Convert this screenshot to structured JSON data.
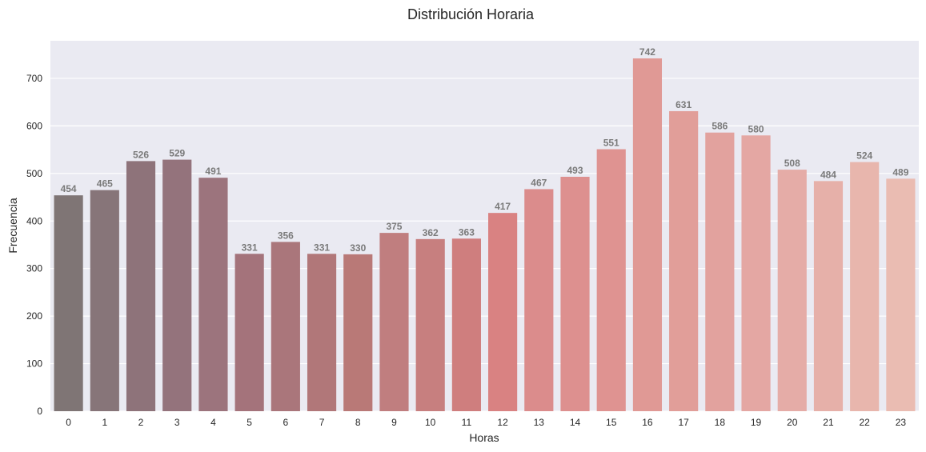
{
  "chart_data": {
    "type": "bar",
    "title": "Distribución Horaria",
    "xlabel": "Horas",
    "ylabel": "Frecuencia",
    "categories": [
      "0",
      "1",
      "2",
      "3",
      "4",
      "5",
      "6",
      "7",
      "8",
      "9",
      "10",
      "11",
      "12",
      "13",
      "14",
      "15",
      "16",
      "17",
      "18",
      "19",
      "20",
      "21",
      "22",
      "23"
    ],
    "values": [
      454,
      465,
      526,
      529,
      491,
      331,
      356,
      331,
      330,
      375,
      362,
      363,
      417,
      467,
      493,
      551,
      742,
      631,
      586,
      580,
      508,
      484,
      524,
      489
    ],
    "data_labels": [
      "454",
      "465",
      "526",
      "529",
      "491",
      "331",
      "356",
      "331",
      "330",
      "375",
      "362",
      "363",
      "417",
      "467",
      "493",
      "551",
      "742",
      "631",
      "586",
      "580",
      "508",
      "484",
      "524",
      "489"
    ],
    "ylim": [
      0,
      779
    ],
    "yticks": [
      0,
      100,
      200,
      300,
      400,
      500,
      600,
      700
    ],
    "grid": true,
    "background": "#eaeaf2",
    "bar_colors": [
      "#7f7575",
      "#877579",
      "#8e737a",
      "#94737c",
      "#9c747d",
      "#a4737b",
      "#aa767b",
      "#b17779",
      "#b97977",
      "#c07e7f",
      "#c77f7f",
      "#cf7e7e",
      "#d98282",
      "#db8c8c",
      "#dd908f",
      "#df9391",
      "#e09995",
      "#e19e99",
      "#e2a29e",
      "#e4a7a3",
      "#e5aca7",
      "#e6b0a9",
      "#e8b6ad",
      "#eabcb2"
    ],
    "label_color": "#7a7a7a"
  }
}
